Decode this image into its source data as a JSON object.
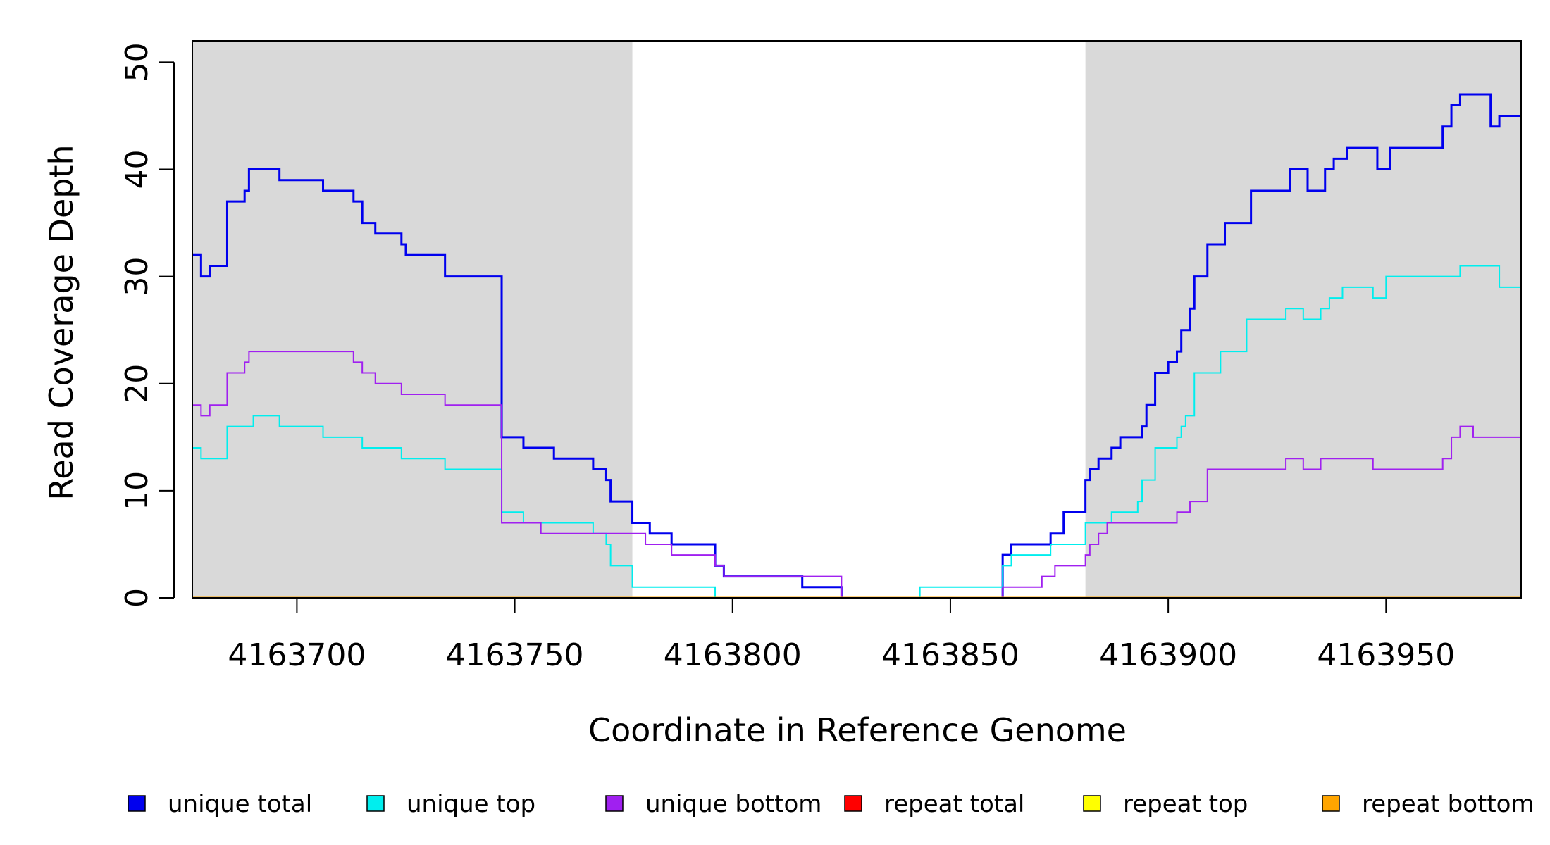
{
  "chart_data": {
    "type": "line",
    "xlabel": "Coordinate in Reference Genome",
    "ylabel": "Read Coverage Depth",
    "xlim": [
      4163676,
      4163981
    ],
    "ylim": [
      0,
      52
    ],
    "x_ticks": [
      4163700,
      4163750,
      4163800,
      4163850,
      4163900,
      4163950
    ],
    "x_tick_labels": [
      "4163700",
      "4163750",
      "4163800",
      "4163850",
      "4163900",
      "4163950"
    ],
    "y_ticks": [
      0,
      10,
      20,
      30,
      40,
      50
    ],
    "y_tick_labels": [
      "0",
      "10",
      "20",
      "30",
      "40",
      "50"
    ],
    "grid": false,
    "legend_position": "bottom",
    "shaded_regions": [
      {
        "x_start": 4163676,
        "x_end": 4163777,
        "color": "#d9d9d9"
      },
      {
        "x_start": 4163881,
        "x_end": 4163981,
        "color": "#d9d9d9"
      }
    ],
    "series": [
      {
        "name": "unique total",
        "color": "#0000ee",
        "line_width": 3,
        "x": [
          4163676,
          4163678,
          4163680,
          4163684,
          4163688,
          4163689,
          4163690,
          4163696,
          4163706,
          4163713,
          4163715,
          4163718,
          4163724,
          4163725,
          4163734,
          4163747,
          4163752,
          4163759,
          4163768,
          4163771,
          4163772,
          4163777,
          4163781,
          4163786,
          4163796,
          4163798,
          4163802,
          4163816,
          4163825,
          4163843,
          4163862,
          4163864,
          4163873,
          4163876,
          4163880,
          4163881,
          4163882,
          4163884,
          4163887,
          4163889,
          4163894,
          4163895,
          4163897,
          4163900,
          4163902,
          4163903,
          4163905,
          4163906,
          4163909,
          4163913,
          4163919,
          4163928,
          4163932,
          4163936,
          4163938,
          4163941,
          4163948,
          4163951,
          4163961,
          4163963,
          4163965,
          4163967,
          4163970,
          4163974,
          4163976,
          4163981
        ],
        "y": [
          32,
          30,
          31,
          37,
          38,
          40,
          40,
          39,
          38,
          37,
          35,
          34,
          33,
          32,
          30,
          15,
          14,
          13,
          12,
          11,
          9,
          7,
          6,
          5,
          3,
          2,
          2,
          1,
          0,
          0,
          4,
          5,
          6,
          8,
          8,
          11,
          12,
          13,
          14,
          15,
          16,
          18,
          21,
          22,
          23,
          25,
          27,
          30,
          33,
          35,
          38,
          40,
          38,
          40,
          41,
          42,
          40,
          42,
          42,
          44,
          46,
          47,
          47,
          44,
          45,
          45
        ]
      },
      {
        "name": "unique top",
        "color": "#00eeee",
        "line_width": 2,
        "x": [
          4163676,
          4163678,
          4163684,
          4163689,
          4163690,
          4163696,
          4163706,
          4163715,
          4163724,
          4163734,
          4163747,
          4163752,
          4163768,
          4163771,
          4163772,
          4163777,
          4163796,
          4163825,
          4163843,
          4163862,
          4163864,
          4163873,
          4163881,
          4163887,
          4163893,
          4163894,
          4163895,
          4163897,
          4163902,
          4163903,
          4163904,
          4163906,
          4163912,
          4163918,
          4163927,
          4163931,
          4163935,
          4163937,
          4163940,
          4163947,
          4163950,
          4163961,
          4163967,
          4163968,
          4163970,
          4163976,
          4163981
        ],
        "y": [
          14,
          13,
          16,
          16,
          17,
          16,
          15,
          14,
          13,
          12,
          8,
          7,
          6,
          5,
          3,
          1,
          0,
          0,
          1,
          3,
          4,
          5,
          7,
          8,
          9,
          11,
          11,
          14,
          15,
          16,
          17,
          21,
          23,
          26,
          27,
          26,
          27,
          28,
          29,
          28,
          30,
          30,
          31,
          31,
          31,
          29,
          30
        ]
      },
      {
        "name": "unique bottom",
        "color": "#a020f0",
        "line_width": 2,
        "x": [
          4163676,
          4163678,
          4163680,
          4163684,
          4163688,
          4163689,
          4163690,
          4163713,
          4163715,
          4163718,
          4163724,
          4163734,
          4163747,
          4163756,
          4163772,
          4163780,
          4163786,
          4163796,
          4163798,
          4163825,
          4163843,
          4163862,
          4163871,
          4163874,
          4163881,
          4163882,
          4163884,
          4163886,
          4163890,
          4163902,
          4163905,
          4163909,
          4163916,
          4163927,
          4163931,
          4163935,
          4163941,
          4163947,
          4163958,
          4163961,
          4163963,
          4163965,
          4163967,
          4163970,
          4163981
        ],
        "y": [
          18,
          17,
          18,
          21,
          22,
          23,
          23,
          22,
          21,
          20,
          19,
          18,
          7,
          6,
          6,
          5,
          4,
          3,
          2,
          0,
          0,
          1,
          2,
          3,
          4,
          5,
          6,
          7,
          7,
          8,
          9,
          12,
          12,
          13,
          12,
          13,
          13,
          12,
          12,
          12,
          13,
          15,
          16,
          15,
          15
        ]
      },
      {
        "name": "repeat total",
        "color": "#ff0000",
        "line_width": 2,
        "x": [
          4163676,
          4163981
        ],
        "y": [
          0,
          0
        ]
      },
      {
        "name": "repeat top",
        "color": "#ffff00",
        "line_width": 2,
        "x": [
          4163676,
          4163981
        ],
        "y": [
          0,
          0
        ]
      },
      {
        "name": "repeat bottom",
        "color": "#ffa500",
        "line_width": 3,
        "x": [
          4163676,
          4163981
        ],
        "y": [
          0,
          0
        ]
      }
    ]
  }
}
